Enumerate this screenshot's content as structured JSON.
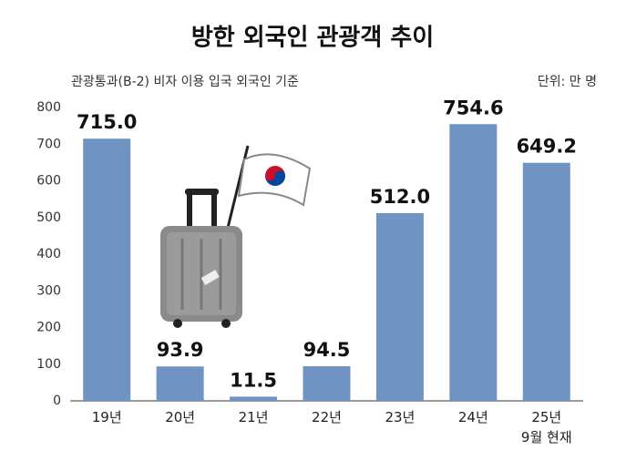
{
  "chart_data": {
    "type": "bar",
    "title": "방한 외국인 관광객 추이",
    "subtitle": "관광통과(B-2) 비자 이용 입국 외국인 기준",
    "unit": "단위: 만 명",
    "categories": [
      "19년",
      "20년",
      "21년",
      "22년",
      "23년",
      "24년",
      "25년\n9월 현재"
    ],
    "values": [
      715.0,
      93.9,
      11.5,
      94.5,
      512.0,
      754.6,
      649.2
    ],
    "value_labels": [
      "715.0",
      "93.9",
      "11.5",
      "94.5",
      "512.0",
      "754.6",
      "649.2"
    ],
    "color": "#6f93c2",
    "ylim": [
      0,
      800
    ],
    "yticks": [
      0,
      100,
      200,
      300,
      400,
      500,
      600,
      700,
      800
    ],
    "grid": false
  }
}
